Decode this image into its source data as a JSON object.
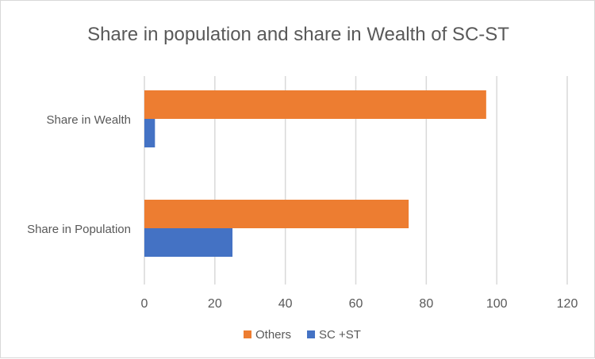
{
  "chart_data": {
    "type": "bar",
    "orientation": "horizontal",
    "title": "Share in population and share in Wealth of SC-ST",
    "categories": [
      "Share in Population",
      "Share in Wealth"
    ],
    "series": [
      {
        "name": "SC +ST",
        "values": [
          25,
          3
        ],
        "color": "#4472c4"
      },
      {
        "name": "Others",
        "values": [
          75,
          97
        ],
        "color": "#ed7d31"
      }
    ],
    "xlim": [
      0,
      120
    ],
    "xticks": [
      "0",
      "20",
      "40",
      "60",
      "80",
      "100",
      "120"
    ],
    "grid": true,
    "legend": "bottom",
    "legend_order": [
      "Others",
      "SC +ST"
    ]
  }
}
